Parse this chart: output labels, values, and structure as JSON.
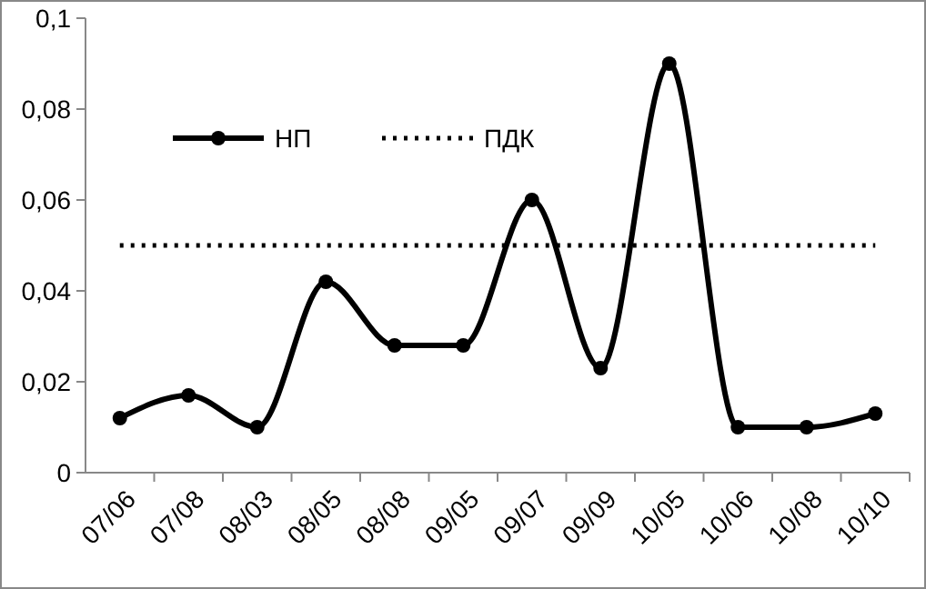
{
  "chart_data": {
    "type": "line",
    "categories": [
      "07/06",
      "07/08",
      "08/03",
      "08/05",
      "08/08",
      "09/05",
      "09/07",
      "09/09",
      "10/05",
      "10/06",
      "10/08",
      "10/10"
    ],
    "series": [
      {
        "name": "НП",
        "color": "#000000",
        "values": [
          0.012,
          0.017,
          0.01,
          0.042,
          0.028,
          0.028,
          0.06,
          0.023,
          0.09,
          0.01,
          0.01,
          0.013
        ],
        "marker": "circle",
        "line_style": "solid"
      },
      {
        "name": "ПДК",
        "color": "#000000",
        "values": [
          0.05,
          0.05,
          0.05,
          0.05,
          0.05,
          0.05,
          0.05,
          0.05,
          0.05,
          0.05,
          0.05,
          0.05
        ],
        "marker": "none",
        "line_style": "dotted"
      }
    ],
    "ylim": [
      0,
      0.1
    ],
    "yticks": [
      0,
      {
        "value": 0.02,
        "label": "0,02"
      },
      {
        "value": 0.04,
        "label": "0,04"
      },
      {
        "value": 0.06,
        "label": "0,06"
      },
      {
        "value": 0.08,
        "label": "0,08"
      },
      {
        "value": 0.1,
        "label": "0,1"
      }
    ],
    "grid": false,
    "legend": "top left"
  }
}
